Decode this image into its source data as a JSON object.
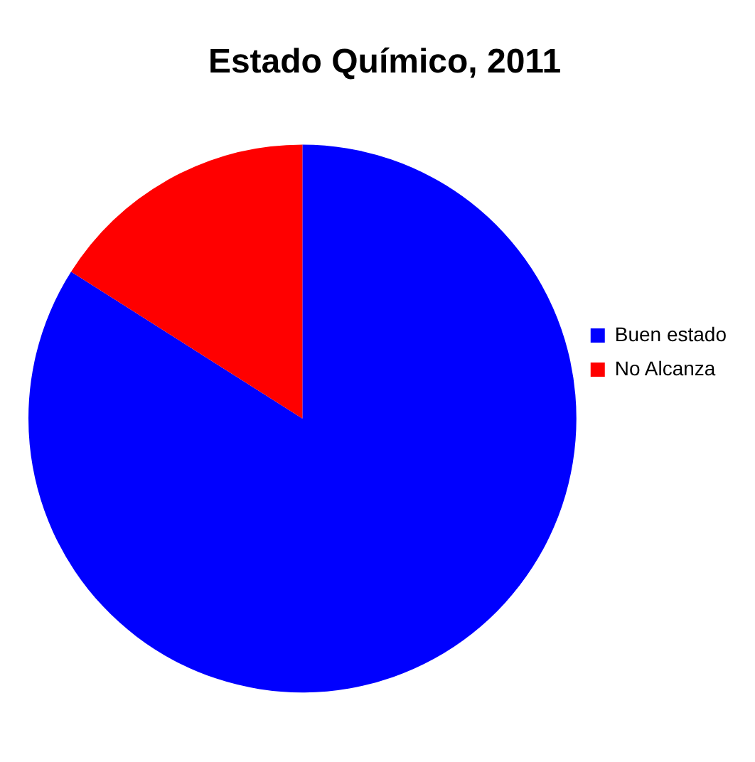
{
  "chart_data": {
    "type": "pie",
    "title": "Estado Químico, 2011",
    "categories": [
      "Buen estado",
      "No Alcanza"
    ],
    "values": [
      84,
      16
    ],
    "colors": [
      "#0000ff",
      "#ff0000"
    ],
    "legend": "right"
  }
}
